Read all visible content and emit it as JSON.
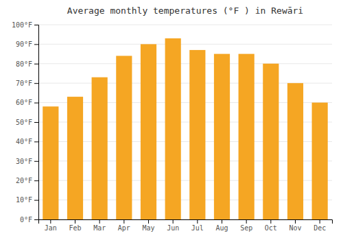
{
  "chart_data": {
    "type": "bar",
    "title": "Average monthly temperatures (°F ) in Rewāri",
    "categories": [
      "Jan",
      "Feb",
      "Mar",
      "Apr",
      "May",
      "Jun",
      "Jul",
      "Aug",
      "Sep",
      "Oct",
      "Nov",
      "Dec"
    ],
    "values": [
      58,
      63,
      73,
      84,
      90,
      93,
      87,
      85,
      85,
      80,
      70,
      60
    ],
    "color": "#F5A623",
    "ylim": [
      0,
      100
    ],
    "yticks": [
      {
        "value": 0,
        "label": "0°F"
      },
      {
        "value": 10,
        "label": "10°F"
      },
      {
        "value": 20,
        "label": "20°F"
      },
      {
        "value": 30,
        "label": "30°F"
      },
      {
        "value": 40,
        "label": "40°F"
      },
      {
        "value": 50,
        "label": "50°F"
      },
      {
        "value": 60,
        "label": "60°F"
      },
      {
        "value": 70,
        "label": "70°F"
      },
      {
        "value": 80,
        "label": "80°F"
      },
      {
        "value": 90,
        "label": "90°F"
      },
      {
        "value": 100,
        "label": "100°F"
      }
    ],
    "grid": true
  }
}
